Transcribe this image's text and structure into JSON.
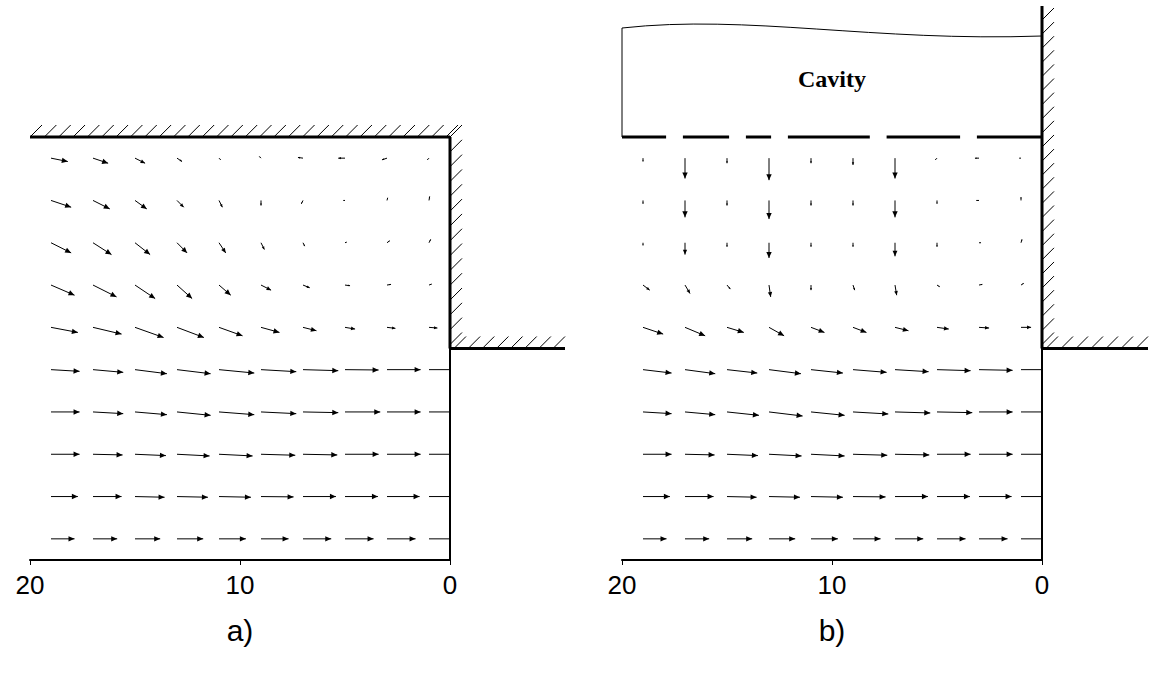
{
  "chart_data": [
    {
      "type": "quiver",
      "panel_label": "a)",
      "color": "#000000",
      "grid": false,
      "tick_labels": "x",
      "xlim": [
        20,
        0
      ],
      "xticks": [
        20,
        10,
        0
      ],
      "ylim": [
        0,
        20
      ],
      "step_y": 10,
      "x": [
        19,
        17,
        15,
        13,
        11,
        9,
        7,
        5,
        3,
        1
      ],
      "y": [
        19,
        17,
        15,
        13,
        11,
        9,
        7,
        5,
        3,
        1
      ],
      "u": [
        [
          -0.5,
          -0.45,
          -0.3,
          -0.15,
          -0.05,
          0.05,
          0.15,
          0.2,
          0.15,
          0.05
        ],
        [
          -0.6,
          -0.5,
          -0.35,
          -0.2,
          -0.1,
          0.0,
          0.05,
          0.05,
          -0.02,
          -0.02
        ],
        [
          -0.6,
          -0.55,
          -0.45,
          -0.3,
          -0.2,
          -0.1,
          -0.05,
          -0.05,
          -0.08,
          -0.05
        ],
        [
          -0.7,
          -0.7,
          -0.6,
          -0.45,
          -0.35,
          -0.3,
          -0.2,
          -0.15,
          -0.12,
          -0.08
        ],
        [
          -0.8,
          -0.85,
          -0.85,
          -0.8,
          -0.7,
          -0.55,
          -0.4,
          -0.3,
          -0.25,
          -0.25
        ],
        [
          -0.85,
          -0.9,
          -0.95,
          -1.0,
          -1.05,
          -1.05,
          -1.05,
          -1.0,
          -1.0,
          -1.0
        ],
        [
          -0.85,
          -0.9,
          -0.95,
          -1.0,
          -1.05,
          -1.05,
          -1.05,
          -1.05,
          -1.0,
          -1.0
        ],
        [
          -0.85,
          -0.88,
          -0.92,
          -0.97,
          -1.0,
          -1.02,
          -1.02,
          -1.0,
          -1.0,
          -1.0
        ],
        [
          -0.8,
          -0.85,
          -0.88,
          -0.92,
          -0.95,
          -0.97,
          -0.98,
          -0.98,
          -0.97,
          -0.97
        ],
        [
          -0.7,
          -0.72,
          -0.75,
          -0.78,
          -0.8,
          -0.82,
          -0.84,
          -0.85,
          -0.85,
          -0.85
        ]
      ],
      "v": [
        [
          -0.1,
          -0.15,
          -0.15,
          -0.1,
          -0.05,
          0.05,
          0.02,
          0,
          -0.05,
          -0.05
        ],
        [
          -0.2,
          -0.25,
          -0.25,
          -0.2,
          -0.2,
          -0.15,
          -0.1,
          0.0,
          0.08,
          0.12
        ],
        [
          -0.3,
          -0.35,
          -0.35,
          -0.3,
          -0.3,
          -0.2,
          -0.1,
          0.02,
          0.06,
          0.1
        ],
        [
          -0.3,
          -0.35,
          -0.4,
          -0.4,
          -0.3,
          -0.15,
          -0.08,
          -0.02,
          0.02,
          0.03
        ],
        [
          -0.15,
          -0.2,
          -0.3,
          -0.3,
          -0.25,
          -0.15,
          -0.1,
          -0.05,
          -0.03,
          -0.02
        ],
        [
          -0.05,
          -0.08,
          -0.12,
          -0.12,
          -0.1,
          -0.06,
          -0.03,
          -0.01,
          0,
          0
        ],
        [
          0,
          -0.05,
          -0.08,
          -0.1,
          -0.08,
          -0.05,
          -0.02,
          0,
          0,
          0
        ],
        [
          0,
          -0.02,
          -0.04,
          -0.05,
          -0.05,
          -0.03,
          -0.02,
          0,
          0,
          0
        ],
        [
          0,
          0,
          -0.02,
          -0.02,
          -0.02,
          -0.01,
          0,
          0,
          0,
          0
        ],
        [
          0,
          0,
          0,
          0,
          0,
          0,
          0,
          0,
          0,
          0
        ]
      ]
    },
    {
      "type": "quiver",
      "panel_label": "b)",
      "annotation": "Cavity",
      "color": "#000000",
      "grid": false,
      "tick_labels": "x",
      "xlim": [
        20,
        0
      ],
      "xticks": [
        20,
        10,
        0
      ],
      "ylim": [
        0,
        20
      ],
      "step_y": 10,
      "slots": [
        17.5,
        14.5,
        12.5,
        7.8,
        3.5
      ],
      "x": [
        19,
        17,
        15,
        13,
        11,
        9,
        7,
        5,
        3,
        1
      ],
      "y": [
        19,
        17,
        15,
        13,
        11,
        9,
        7,
        5,
        3,
        1
      ],
      "u": [
        [
          0,
          0,
          0,
          0,
          0,
          0,
          0,
          0.05,
          0.12,
          0.05
        ],
        [
          0,
          0,
          0,
          0,
          0,
          0,
          0,
          0,
          0.08,
          0
        ],
        [
          0,
          0,
          0,
          0,
          0,
          0,
          0,
          0,
          -0.06,
          -0.03
        ],
        [
          -0.2,
          -0.15,
          -0.1,
          -0.05,
          0,
          -0.05,
          -0.05,
          -0.08,
          -0.1,
          -0.08
        ],
        [
          -0.6,
          -0.6,
          -0.5,
          -0.45,
          -0.4,
          -0.4,
          -0.4,
          -0.35,
          -0.3,
          -0.3
        ],
        [
          -0.85,
          -0.9,
          -0.9,
          -0.95,
          -0.95,
          -1.0,
          -1.0,
          -1.0,
          -1.0,
          -1.0
        ],
        [
          -0.85,
          -0.9,
          -0.95,
          -1.0,
          -1.0,
          -1.05,
          -1.05,
          -1.05,
          -1.0,
          -1.0
        ],
        [
          -0.85,
          -0.88,
          -0.92,
          -0.97,
          -1.0,
          -1.02,
          -1.02,
          -1.0,
          -1.0,
          -1.0
        ],
        [
          -0.8,
          -0.85,
          -0.88,
          -0.92,
          -0.95,
          -0.97,
          -0.98,
          -0.98,
          -0.97,
          -0.97
        ],
        [
          -0.7,
          -0.72,
          -0.75,
          -0.78,
          -0.8,
          -0.82,
          -0.84,
          -0.85,
          -0.85,
          -0.85
        ]
      ],
      "v": [
        [
          -0.1,
          -0.6,
          -0.15,
          -0.65,
          -0.15,
          -0.2,
          -0.6,
          -0.05,
          0,
          0
        ],
        [
          -0.1,
          -0.5,
          -0.15,
          -0.55,
          -0.15,
          -0.15,
          -0.5,
          -0.1,
          0.0,
          0.1
        ],
        [
          -0.08,
          -0.35,
          -0.12,
          -0.45,
          -0.12,
          -0.12,
          -0.4,
          -0.12,
          0,
          0.1
        ],
        [
          -0.15,
          -0.25,
          -0.12,
          -0.35,
          -0.15,
          -0.15,
          -0.3,
          -0.05,
          0.02,
          0.05
        ],
        [
          -0.2,
          -0.25,
          -0.15,
          -0.25,
          -0.15,
          -0.15,
          -0.1,
          -0.05,
          -0.02,
          0
        ],
        [
          -0.1,
          -0.12,
          -0.1,
          -0.12,
          -0.1,
          -0.08,
          -0.06,
          -0.03,
          -0.02,
          0
        ],
        [
          -0.05,
          -0.08,
          -0.1,
          -0.12,
          -0.1,
          -0.06,
          -0.03,
          -0.02,
          0,
          0
        ],
        [
          0,
          -0.02,
          -0.04,
          -0.05,
          -0.05,
          -0.03,
          -0.02,
          0,
          0,
          0
        ],
        [
          0,
          0,
          -0.02,
          -0.02,
          -0.02,
          -0.01,
          0,
          0,
          0,
          0
        ],
        [
          0,
          0,
          0,
          0,
          0,
          0,
          0,
          0,
          0,
          0
        ]
      ]
    }
  ]
}
